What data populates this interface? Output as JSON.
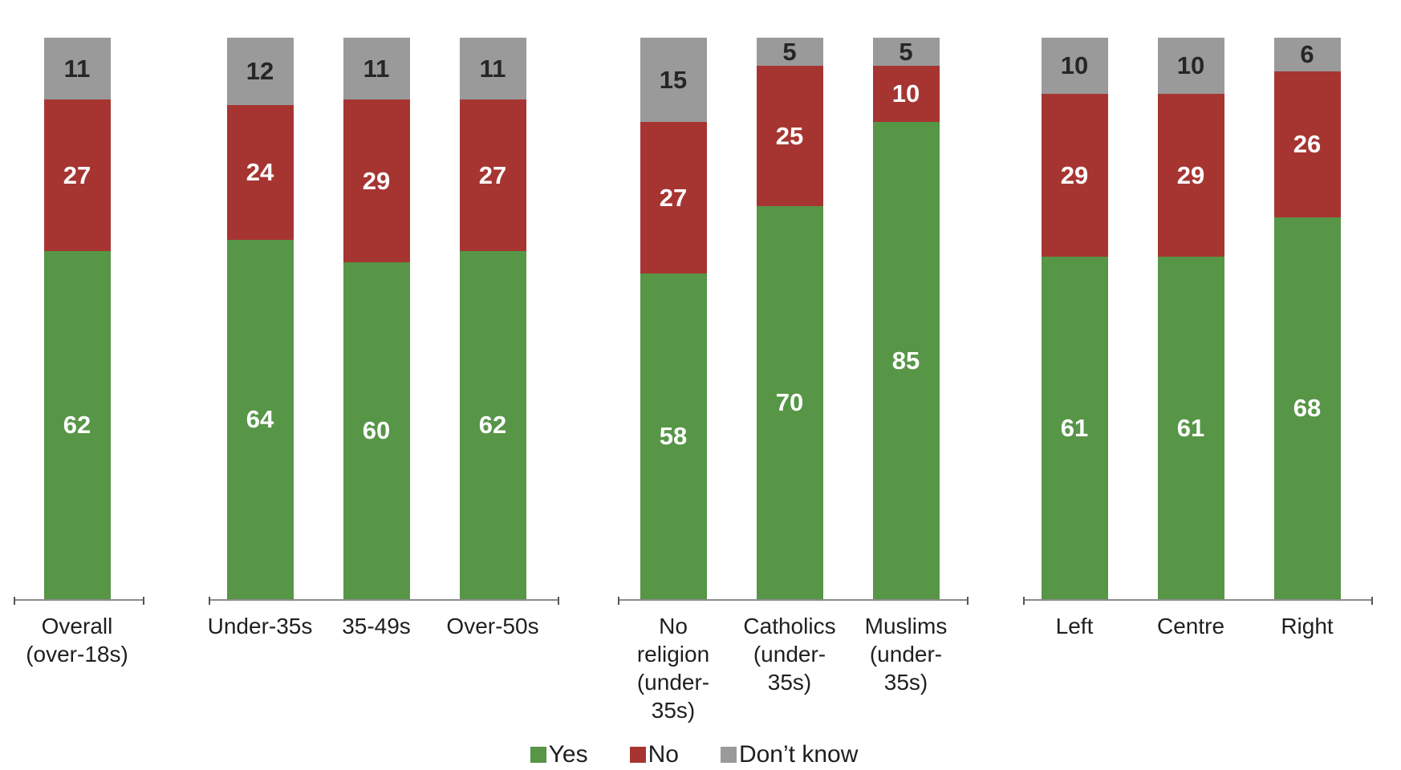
{
  "chart_data": {
    "type": "bar",
    "stacked": true,
    "ylim": [
      0,
      100
    ],
    "units": "percent",
    "series_names": [
      "Yes",
      "No",
      "Don’t know"
    ],
    "colors": {
      "yes": "#579547",
      "no": "#A63532",
      "dont_know": "#9A9A9A"
    },
    "value_label_colors": {
      "yes": "#FFFFFF",
      "no": "#FFFFFF",
      "dont_know": "#262626"
    },
    "grid": false,
    "groups": [
      {
        "name": "overall",
        "categories": [
          "Overall\n(over-18s)"
        ],
        "series": [
          {
            "key": "yes",
            "name": "Yes",
            "values": [
              62
            ]
          },
          {
            "key": "no",
            "name": "No",
            "values": [
              27
            ]
          },
          {
            "key": "dont_know",
            "name": "Don’t know",
            "values": [
              11
            ]
          }
        ]
      },
      {
        "name": "age",
        "categories": [
          "Under-35s",
          "35-49s",
          "Over-50s"
        ],
        "series": [
          {
            "key": "yes",
            "name": "Yes",
            "values": [
              64,
              60,
              62
            ]
          },
          {
            "key": "no",
            "name": "No",
            "values": [
              24,
              29,
              27
            ]
          },
          {
            "key": "dont_know",
            "name": "Don’t know",
            "values": [
              12,
              11,
              11
            ]
          }
        ]
      },
      {
        "name": "religion",
        "categories": [
          "No\nreligion\n(under-\n35s)",
          "Catholics\n(under-\n35s)",
          "Muslims\n(under-\n35s)"
        ],
        "series": [
          {
            "key": "yes",
            "name": "Yes",
            "values": [
              58,
              70,
              85
            ]
          },
          {
            "key": "no",
            "name": "No",
            "values": [
              27,
              25,
              10
            ]
          },
          {
            "key": "dont_know",
            "name": "Don’t know",
            "values": [
              15,
              5,
              5
            ]
          }
        ]
      },
      {
        "name": "politics",
        "categories": [
          "Left",
          "Centre",
          "Right"
        ],
        "series": [
          {
            "key": "yes",
            "name": "Yes",
            "values": [
              61,
              61,
              68
            ]
          },
          {
            "key": "no",
            "name": "No",
            "values": [
              29,
              29,
              26
            ]
          },
          {
            "key": "dont_know",
            "name": "Don’t know",
            "values": [
              10,
              10,
              6
            ]
          }
        ]
      }
    ],
    "legend": {
      "position": "bottom",
      "items": [
        {
          "key": "yes",
          "label": "Yes"
        },
        {
          "key": "no",
          "label": "No"
        },
        {
          "key": "dont_know",
          "label": "Don’t know"
        }
      ]
    }
  }
}
